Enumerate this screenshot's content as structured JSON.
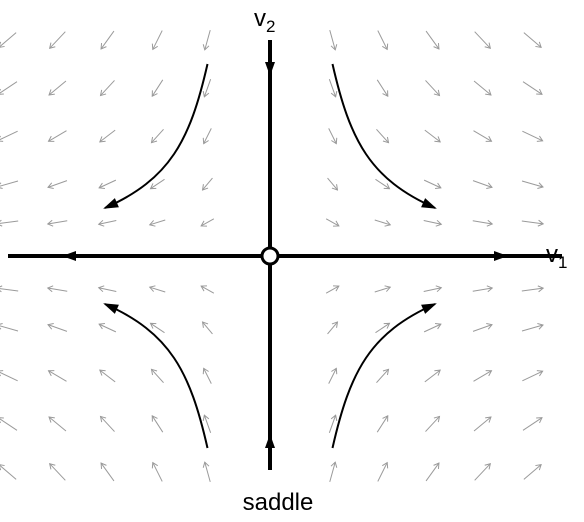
{
  "labels": {
    "v2": "v",
    "v2_sub": "2",
    "v1": "v",
    "v1_sub": "1",
    "caption": "saddle"
  },
  "colors": {
    "axis": "#000000",
    "field_arrow": "#9a9a9a",
    "trajectory": "#000000",
    "fixed_point_fill": "#ffffff"
  },
  "field": {
    "description_free": true,
    "eigenvalue_v1": 1,
    "eigenvalue_v2": -1,
    "grid_x": [
      -5.25,
      -4.25,
      -3.25,
      -2.25,
      -1.25,
      1.25,
      2.25,
      3.25,
      4.25,
      5.25
    ],
    "grid_y": [
      4.5,
      3.5,
      2.5,
      1.5,
      0.7,
      -0.7,
      -1.5,
      -2.5,
      -3.5,
      -4.5
    ]
  },
  "trajectories": [
    {
      "name": "upper-left",
      "points": [
        [
          -1.25,
          4.0
        ],
        [
          -1.6,
          2.4
        ],
        [
          -2.0,
          1.6
        ],
        [
          -3.3,
          1.0
        ]
      ]
    },
    {
      "name": "upper-right",
      "points": [
        [
          1.25,
          4.0
        ],
        [
          1.6,
          2.4
        ],
        [
          2.0,
          1.6
        ],
        [
          3.3,
          1.0
        ]
      ]
    },
    {
      "name": "lower-left",
      "points": [
        [
          -1.25,
          -4.0
        ],
        [
          -1.6,
          -2.4
        ],
        [
          -2.0,
          -1.6
        ],
        [
          -3.3,
          -1.0
        ]
      ]
    },
    {
      "name": "lower-right",
      "points": [
        [
          1.25,
          -4.0
        ],
        [
          1.6,
          -2.4
        ],
        [
          2.0,
          -1.6
        ],
        [
          3.3,
          -1.0
        ]
      ]
    }
  ]
}
